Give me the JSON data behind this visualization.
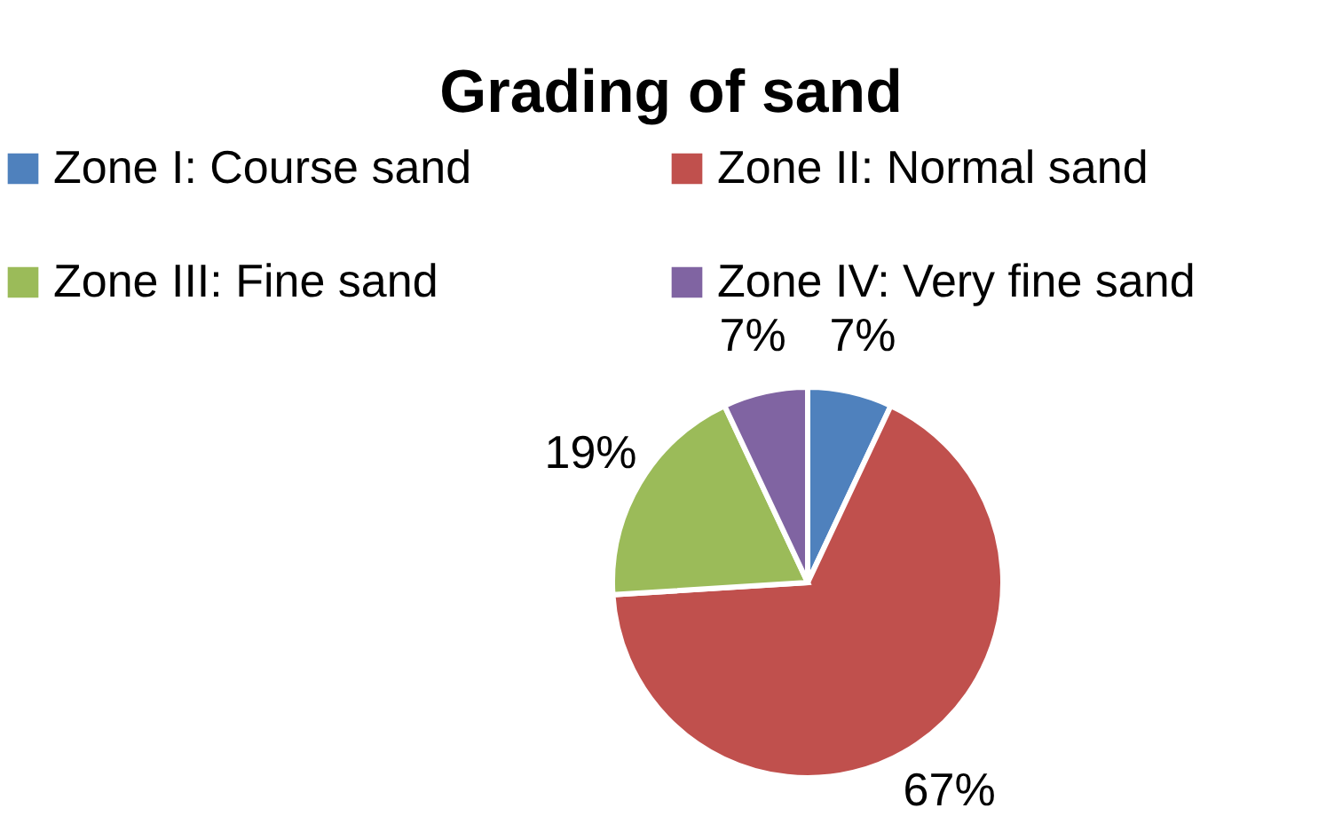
{
  "chart_data": {
    "type": "pie",
    "title": "Grading of sand",
    "categories": [
      "Zone I: Course sand",
      "Zone II: Normal sand",
      "Zone III: Fine sand",
      "Zone IV: Very fine sand"
    ],
    "values": [
      7,
      67,
      19,
      7
    ],
    "value_labels": [
      "7%",
      "67%",
      "19%",
      "7%"
    ],
    "colors": [
      "#4f81bd",
      "#c0504d",
      "#9bbb59",
      "#8064a2"
    ],
    "legend": "top"
  }
}
